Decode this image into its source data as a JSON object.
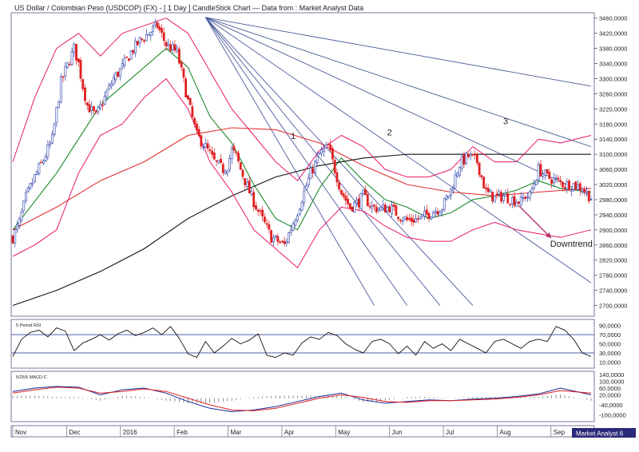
{
  "chart_data": {
    "type": "candlestick",
    "title": "US Dollar / Colombian Peso (USDCOP) (FX) - [ 1 Day ] CandleStick Chart — Data from : Market Analyst Data",
    "instrument": "USDCOP",
    "timeframe": "1 Day",
    "watermark": "Market Analyst 6",
    "colors": {
      "up_candle": "#2b3ea8",
      "down_candle": "#e02020",
      "bollinger": "#e8186a",
      "ma_short": "#1a8a2a",
      "ma_mid": "#e03030",
      "ma_long": "#111111",
      "fan_lines": "#4a5a9a",
      "rsi": "#111111",
      "macd": "#1a2a9a",
      "macd_signal": "#e02020",
      "arrow": "#b0306a"
    },
    "price_axis": {
      "range": [
        2680,
        3470
      ],
      "ticks": [
        "3460,0000",
        "3420,0000",
        "3380,0000",
        "3340,0000",
        "3300,0000",
        "3260,0000",
        "3220,0000",
        "3180,0000",
        "3140,0000",
        "3100,0000",
        "3060,0000",
        "3020,0000",
        "2980,0000",
        "2940,0000",
        "2900,0000",
        "2860,0000",
        "2820,0000",
        "2780,0000",
        "2740,0000",
        "2700,0000"
      ]
    },
    "x_axis": {
      "labels": [
        "Nov",
        "Dec",
        "2016",
        "Feb",
        "Mar",
        "Apr",
        "May",
        "Jun",
        "Jul",
        "Aug",
        "Sep"
      ],
      "corner_label": "Market Analyst 6"
    },
    "close_path": {
      "t": [
        0,
        3,
        6,
        10,
        14,
        18,
        22,
        26,
        28,
        30,
        32,
        34,
        38,
        42,
        46,
        50,
        54,
        58,
        62,
        66,
        70,
        75,
        80,
        84,
        88,
        92,
        96,
        98,
        100,
        102,
        104,
        108,
        112,
        118,
        124,
        130,
        136,
        140,
        144,
        150,
        154,
        158,
        160,
        164,
        168,
        172,
        176,
        180,
        186,
        192,
        196,
        200,
        204,
        208,
        212,
        216,
        220,
        224,
        228,
        232,
        234,
        236,
        240,
        244,
        248,
        252,
        256,
        260,
        264
      ],
      "values": [
        2880,
        2920,
        2985,
        3040,
        3085,
        3140,
        3290,
        3350,
        3380,
        3340,
        3280,
        3230,
        3200,
        3250,
        3300,
        3330,
        3370,
        3400,
        3420,
        3440,
        3390,
        3370,
        3240,
        3150,
        3120,
        3080,
        3060,
        3070,
        3110,
        3095,
        3060,
        3000,
        2950,
        2880,
        2860,
        2950,
        3050,
        3100,
        3120,
        3000,
        2960,
        2975,
        2990,
        2960,
        2955,
        2960,
        2940,
        2925,
        2930,
        2950,
        2960,
        3005,
        3075,
        3095,
        3080,
        3000,
        2985,
        2990,
        2980,
        2975,
        2990,
        2990,
        3060,
        3040,
        3030,
        3020,
        3020,
        3010,
        2985
      ]
    },
    "moving_averages": [
      {
        "name": "short MA",
        "t": [
          0,
          20,
          40,
          60,
          70,
          80,
          90,
          100,
          110,
          120,
          130,
          140,
          150,
          160,
          170,
          180,
          190,
          200,
          210,
          220,
          230,
          240,
          250,
          264
        ],
        "values": [
          2900,
          3050,
          3230,
          3330,
          3380,
          3330,
          3200,
          3130,
          3020,
          2930,
          2900,
          3010,
          3090,
          3030,
          2980,
          2960,
          2930,
          2945,
          2980,
          2990,
          3005,
          3030,
          3010,
          3000
        ]
      },
      {
        "name": "mid MA",
        "t": [
          0,
          20,
          40,
          60,
          80,
          100,
          120,
          140,
          160,
          180,
          200,
          220,
          240,
          264
        ],
        "values": [
          2900,
          2960,
          3030,
          3080,
          3150,
          3170,
          3165,
          3130,
          3070,
          3020,
          3000,
          2990,
          3000,
          3010
        ]
      },
      {
        "name": "long MA",
        "t": [
          0,
          20,
          40,
          60,
          80,
          100,
          120,
          140,
          160,
          180,
          200,
          220,
          240,
          264
        ],
        "values": [
          2700,
          2740,
          2790,
          2850,
          2930,
          2990,
          3040,
          3070,
          3090,
          3100,
          3100,
          3100,
          3100,
          3100
        ]
      }
    ],
    "bollinger": {
      "t": [
        0,
        10,
        20,
        30,
        40,
        50,
        60,
        70,
        80,
        90,
        100,
        110,
        120,
        130,
        140,
        150,
        160,
        170,
        180,
        190,
        200,
        210,
        220,
        230,
        240,
        250,
        264
      ],
      "upper": [
        3080,
        3250,
        3380,
        3420,
        3360,
        3420,
        3440,
        3460,
        3420,
        3320,
        3220,
        3150,
        3080,
        3030,
        3110,
        3150,
        3120,
        3060,
        3040,
        3040,
        3060,
        3120,
        3080,
        3080,
        3140,
        3130,
        3150
      ],
      "lower": [
        2830,
        2860,
        2900,
        3050,
        3150,
        3180,
        3250,
        3300,
        3220,
        3080,
        3000,
        2900,
        2850,
        2800,
        2900,
        2960,
        2950,
        2910,
        2880,
        2870,
        2870,
        2900,
        2920,
        2900,
        2890,
        2880,
        2900
      ]
    },
    "fan": {
      "origin_t": 88,
      "origin_value": 3462,
      "end_points": [
        [
          264,
          3280
        ],
        [
          264,
          3120
        ],
        [
          264,
          2990
        ],
        [
          264,
          2760
        ],
        [
          210,
          2700
        ],
        [
          195,
          2700
        ],
        [
          180,
          2700
        ],
        [
          165,
          2700
        ]
      ]
    },
    "annotations": [
      {
        "label": "1",
        "t": 128,
        "value": 3140
      },
      {
        "label": "2",
        "t": 172,
        "value": 3150
      },
      {
        "label": "3",
        "t": 225,
        "value": 3180
      },
      {
        "label": "Downtrend",
        "t": 255,
        "value": 2855
      }
    ],
    "rsi_panel": {
      "label": "5 Period RSI",
      "range": [
        0,
        100
      ],
      "ticks": [
        "90,0000",
        "70,0000",
        "50,0000",
        "30,0000",
        "10,0000"
      ],
      "levels": [
        70,
        30
      ],
      "t": [
        0,
        4,
        8,
        12,
        16,
        20,
        24,
        28,
        32,
        36,
        40,
        44,
        48,
        52,
        56,
        60,
        64,
        68,
        72,
        76,
        80,
        84,
        88,
        92,
        96,
        100,
        104,
        108,
        112,
        116,
        120,
        124,
        128,
        132,
        136,
        140,
        144,
        148,
        152,
        156,
        160,
        164,
        168,
        172,
        176,
        180,
        184,
        188,
        192,
        196,
        200,
        204,
        208,
        212,
        216,
        220,
        224,
        228,
        232,
        236,
        240,
        244,
        248,
        252,
        256,
        260,
        264
      ],
      "values": [
        22,
        60,
        75,
        80,
        65,
        85,
        78,
        35,
        52,
        60,
        70,
        58,
        72,
        80,
        68,
        75,
        85,
        70,
        88,
        62,
        28,
        20,
        55,
        30,
        45,
        62,
        50,
        58,
        72,
        25,
        20,
        30,
        25,
        52,
        65,
        60,
        75,
        68,
        50,
        38,
        30,
        55,
        60,
        50,
        28,
        45,
        25,
        55,
        40,
        50,
        35,
        60,
        50,
        40,
        30,
        55,
        60,
        50,
        40,
        55,
        60,
        55,
        88,
        80,
        60,
        30,
        22
      ]
    },
    "macd_panel": {
      "label": "5/25/5 MACD-C",
      "range": [
        -130,
        150
      ],
      "ticks": [
        "140,0000",
        "100,0000",
        "60,0000",
        "20,0000",
        "-40,0000",
        "-100,0000"
      ],
      "t": [
        0,
        10,
        20,
        30,
        40,
        50,
        60,
        70,
        80,
        90,
        100,
        110,
        120,
        130,
        140,
        150,
        160,
        170,
        180,
        190,
        200,
        210,
        220,
        230,
        240,
        250,
        264
      ],
      "macd": [
        40,
        60,
        70,
        65,
        20,
        50,
        60,
        30,
        -20,
        -60,
        -80,
        -70,
        -50,
        -20,
        10,
        30,
        -10,
        -30,
        -20,
        -10,
        -15,
        -5,
        0,
        10,
        25,
        60,
        20
      ],
      "signal": [
        30,
        50,
        65,
        60,
        30,
        40,
        55,
        40,
        0,
        -40,
        -70,
        -75,
        -60,
        -30,
        0,
        20,
        5,
        -20,
        -25,
        -15,
        -15,
        -10,
        -5,
        5,
        20,
        45,
        30
      ]
    }
  }
}
